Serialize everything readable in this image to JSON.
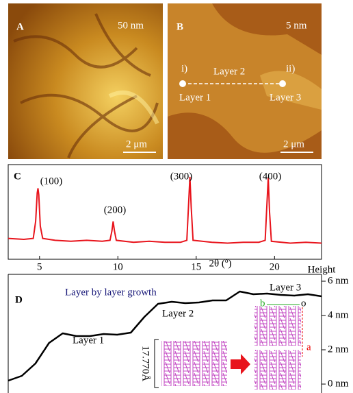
{
  "panels": {
    "a": {
      "label": "A",
      "scale": "50 nm",
      "scalebar": "2 μm"
    },
    "b": {
      "label": "B",
      "scale": "5 nm",
      "points": [
        "i)",
        "ii)"
      ],
      "layers": [
        "Layer 1",
        "Layer 2",
        "Layer 3"
      ],
      "scalebar": "2 μm"
    }
  },
  "chart_data": [
    {
      "type": "line",
      "label": "C",
      "xlabel": "2θ (º)",
      "color": "#e8141c",
      "peak_labels": [
        "(100)",
        "(200)",
        "(300)",
        "(400)"
      ],
      "x": [
        3,
        4,
        4.6,
        4.75,
        4.85,
        4.9,
        4.95,
        5.05,
        5.2,
        6,
        7,
        8,
        9,
        9.5,
        9.62,
        9.7,
        9.78,
        9.9,
        11,
        12,
        13,
        14,
        14.4,
        14.52,
        14.6,
        14.68,
        14.8,
        16,
        17,
        18,
        19,
        19.4,
        19.52,
        19.6,
        19.68,
        19.8,
        21,
        22,
        23
      ],
      "values": [
        22,
        21,
        22,
        40,
        70,
        75,
        68,
        35,
        22,
        20,
        19,
        20,
        19,
        20,
        30,
        40,
        30,
        20,
        18,
        19,
        18,
        18,
        20,
        60,
        87,
        55,
        20,
        18,
        17,
        18,
        18,
        20,
        60,
        86,
        50,
        19,
        17,
        18,
        17
      ],
      "xlim": [
        3,
        23
      ],
      "xticks": [
        5,
        10,
        15,
        20
      ],
      "ylim": [
        0,
        100
      ]
    },
    {
      "type": "line",
      "label": "D",
      "title": "Layer by layer growth",
      "ylabel": "Height",
      "color": "#000000",
      "annotations": [
        "Layer 1",
        "Layer 2",
        "Layer 3"
      ],
      "values": [
        0.2,
        0.48,
        1.2,
        2.4,
        2.96,
        2.8,
        2.8,
        2.92,
        2.88,
        3.0,
        3.92,
        4.68,
        4.8,
        4.72,
        4.76,
        4.88,
        4.88,
        5.4,
        5.24,
        5.28,
        5.2,
        5.16,
        5.24,
        5.12
      ],
      "ylim": [
        -0.52,
        6.4
      ],
      "yticks": [
        {
          "value": 0,
          "label": "0 nm"
        },
        {
          "value": 2,
          "label": "2 nm"
        },
        {
          "value": 4,
          "label": "4 nm"
        },
        {
          "value": 6,
          "label": "6 nm"
        }
      ],
      "inset": {
        "spacing": "17.770Å",
        "axes": [
          "b",
          "o",
          "a"
        ]
      }
    }
  ]
}
